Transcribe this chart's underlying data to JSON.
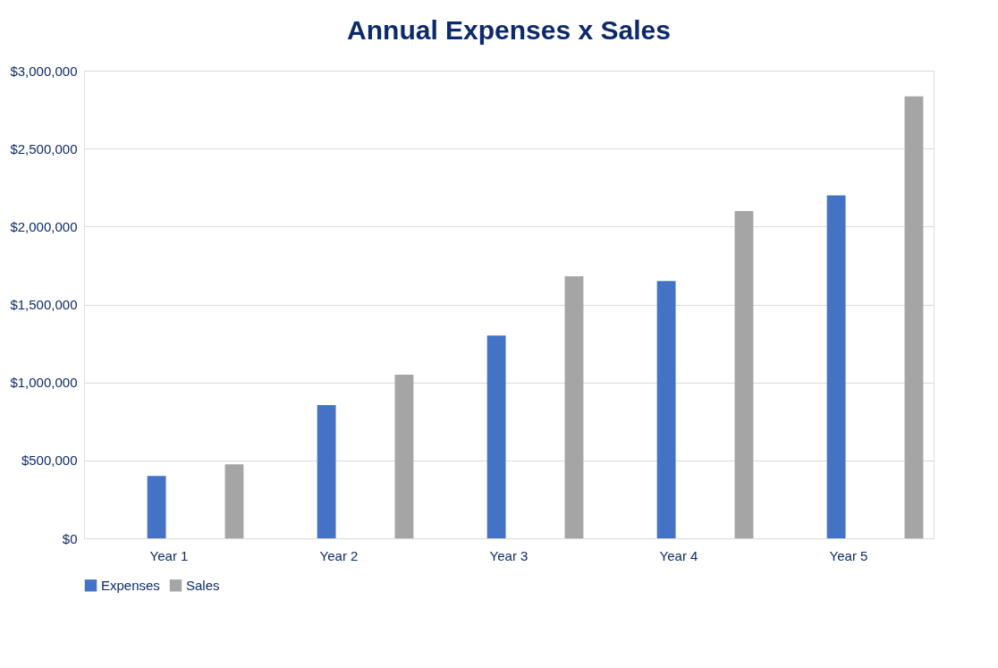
{
  "chart_data": {
    "type": "bar",
    "title": "Annual Expenses x Sales",
    "categories": [
      "Year 1",
      "Year 2",
      "Year 3",
      "Year 4",
      "Year 5"
    ],
    "series": [
      {
        "name": "Expenses",
        "color": "#4472c4",
        "values": [
          400000,
          855000,
          1300000,
          1650000,
          2200000
        ]
      },
      {
        "name": "Sales",
        "color": "#a5a5a5",
        "values": [
          475000,
          1050000,
          1680000,
          2100000,
          2835000
        ]
      }
    ],
    "ylim": [
      0,
      3000000
    ],
    "yticks": [
      {
        "value": 0,
        "label": "$0"
      },
      {
        "value": 500000,
        "label": "$500,000"
      },
      {
        "value": 1000000,
        "label": "$1,000,000"
      },
      {
        "value": 1500000,
        "label": "$1,500,000"
      },
      {
        "value": 2000000,
        "label": "$2,000,000"
      },
      {
        "value": 2500000,
        "label": "$2,500,000"
      },
      {
        "value": 3000000,
        "label": "$3,000,000"
      }
    ],
    "grid": "y",
    "legend": "bottom"
  }
}
